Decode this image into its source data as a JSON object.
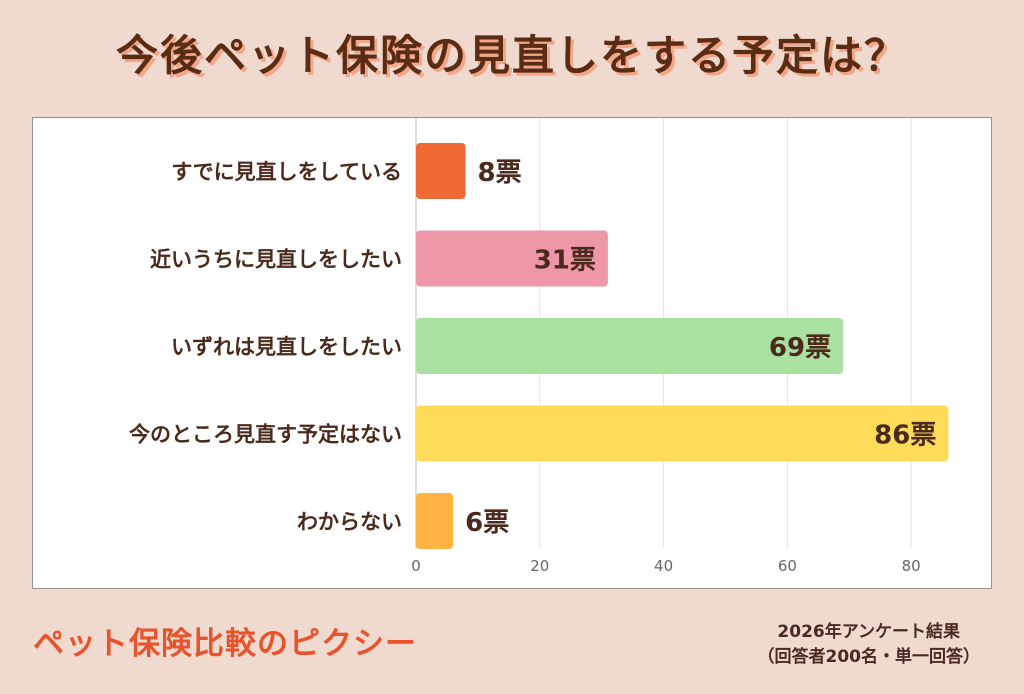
{
  "title": "今後ペット保険の見直しをする予定は？",
  "brand": "ペット保険比較のピクシー",
  "survey_line1": "2026年アンケート結果",
  "survey_line2": "（回答者200名・単一回答）",
  "chart_data": {
    "type": "bar",
    "orientation": "horizontal",
    "categories": [
      "すでに見直しをしている",
      "近いうちに見直しをしたい",
      "いずれは見直しをしたい",
      "今のところ見直す予定はない",
      "わからない"
    ],
    "values": [
      8,
      31,
      69,
      86,
      6
    ],
    "data_labels": [
      "8票",
      "31票",
      "69票",
      "86票",
      "6票"
    ],
    "colors": [
      "#ef6a35",
      "#ee97a8",
      "#a9e1a0",
      "#ffdb5a",
      "#ffb343"
    ],
    "xlim": [
      0,
      86
    ],
    "xticks": [
      "0",
      "20",
      "40",
      "60",
      "80"
    ],
    "grid": true
  }
}
